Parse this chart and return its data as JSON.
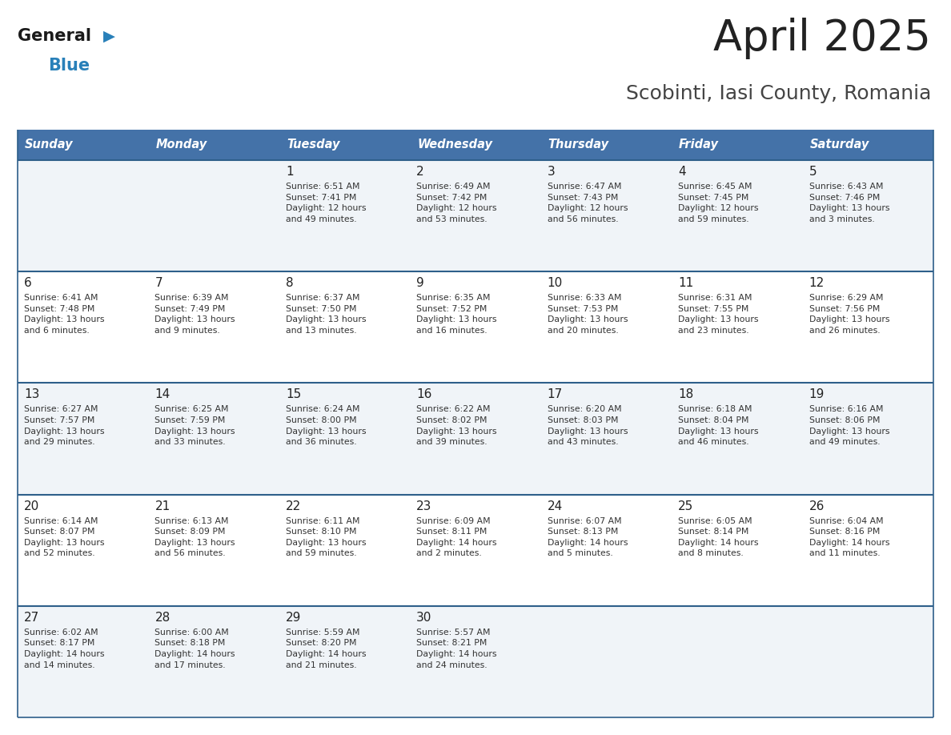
{
  "title": "April 2025",
  "subtitle": "Scobinti, Iasi County, Romania",
  "header_bg": "#4472a8",
  "header_text": "#ffffff",
  "row_bg_odd": "#f0f4f8",
  "row_bg_even": "#ffffff",
  "day_headers": [
    "Sunday",
    "Monday",
    "Tuesday",
    "Wednesday",
    "Thursday",
    "Friday",
    "Saturday"
  ],
  "cell_border_color": "#2e5f8a",
  "title_color": "#222222",
  "subtitle_color": "#444444",
  "day_number_color": "#222222",
  "cell_text_color": "#333333",
  "logo_general_color": "#1a1a1a",
  "logo_blue_color": "#2980b9",
  "logo_triangle_color": "#2980b9",
  "calendar": [
    [
      {
        "day": "",
        "sunrise": "",
        "sunset": "",
        "daylight": ""
      },
      {
        "day": "",
        "sunrise": "",
        "sunset": "",
        "daylight": ""
      },
      {
        "day": "1",
        "sunrise": "Sunrise: 6:51 AM",
        "sunset": "Sunset: 7:41 PM",
        "daylight": "Daylight: 12 hours\nand 49 minutes."
      },
      {
        "day": "2",
        "sunrise": "Sunrise: 6:49 AM",
        "sunset": "Sunset: 7:42 PM",
        "daylight": "Daylight: 12 hours\nand 53 minutes."
      },
      {
        "day": "3",
        "sunrise": "Sunrise: 6:47 AM",
        "sunset": "Sunset: 7:43 PM",
        "daylight": "Daylight: 12 hours\nand 56 minutes."
      },
      {
        "day": "4",
        "sunrise": "Sunrise: 6:45 AM",
        "sunset": "Sunset: 7:45 PM",
        "daylight": "Daylight: 12 hours\nand 59 minutes."
      },
      {
        "day": "5",
        "sunrise": "Sunrise: 6:43 AM",
        "sunset": "Sunset: 7:46 PM",
        "daylight": "Daylight: 13 hours\nand 3 minutes."
      }
    ],
    [
      {
        "day": "6",
        "sunrise": "Sunrise: 6:41 AM",
        "sunset": "Sunset: 7:48 PM",
        "daylight": "Daylight: 13 hours\nand 6 minutes."
      },
      {
        "day": "7",
        "sunrise": "Sunrise: 6:39 AM",
        "sunset": "Sunset: 7:49 PM",
        "daylight": "Daylight: 13 hours\nand 9 minutes."
      },
      {
        "day": "8",
        "sunrise": "Sunrise: 6:37 AM",
        "sunset": "Sunset: 7:50 PM",
        "daylight": "Daylight: 13 hours\nand 13 minutes."
      },
      {
        "day": "9",
        "sunrise": "Sunrise: 6:35 AM",
        "sunset": "Sunset: 7:52 PM",
        "daylight": "Daylight: 13 hours\nand 16 minutes."
      },
      {
        "day": "10",
        "sunrise": "Sunrise: 6:33 AM",
        "sunset": "Sunset: 7:53 PM",
        "daylight": "Daylight: 13 hours\nand 20 minutes."
      },
      {
        "day": "11",
        "sunrise": "Sunrise: 6:31 AM",
        "sunset": "Sunset: 7:55 PM",
        "daylight": "Daylight: 13 hours\nand 23 minutes."
      },
      {
        "day": "12",
        "sunrise": "Sunrise: 6:29 AM",
        "sunset": "Sunset: 7:56 PM",
        "daylight": "Daylight: 13 hours\nand 26 minutes."
      }
    ],
    [
      {
        "day": "13",
        "sunrise": "Sunrise: 6:27 AM",
        "sunset": "Sunset: 7:57 PM",
        "daylight": "Daylight: 13 hours\nand 29 minutes."
      },
      {
        "day": "14",
        "sunrise": "Sunrise: 6:25 AM",
        "sunset": "Sunset: 7:59 PM",
        "daylight": "Daylight: 13 hours\nand 33 minutes."
      },
      {
        "day": "15",
        "sunrise": "Sunrise: 6:24 AM",
        "sunset": "Sunset: 8:00 PM",
        "daylight": "Daylight: 13 hours\nand 36 minutes."
      },
      {
        "day": "16",
        "sunrise": "Sunrise: 6:22 AM",
        "sunset": "Sunset: 8:02 PM",
        "daylight": "Daylight: 13 hours\nand 39 minutes."
      },
      {
        "day": "17",
        "sunrise": "Sunrise: 6:20 AM",
        "sunset": "Sunset: 8:03 PM",
        "daylight": "Daylight: 13 hours\nand 43 minutes."
      },
      {
        "day": "18",
        "sunrise": "Sunrise: 6:18 AM",
        "sunset": "Sunset: 8:04 PM",
        "daylight": "Daylight: 13 hours\nand 46 minutes."
      },
      {
        "day": "19",
        "sunrise": "Sunrise: 6:16 AM",
        "sunset": "Sunset: 8:06 PM",
        "daylight": "Daylight: 13 hours\nand 49 minutes."
      }
    ],
    [
      {
        "day": "20",
        "sunrise": "Sunrise: 6:14 AM",
        "sunset": "Sunset: 8:07 PM",
        "daylight": "Daylight: 13 hours\nand 52 minutes."
      },
      {
        "day": "21",
        "sunrise": "Sunrise: 6:13 AM",
        "sunset": "Sunset: 8:09 PM",
        "daylight": "Daylight: 13 hours\nand 56 minutes."
      },
      {
        "day": "22",
        "sunrise": "Sunrise: 6:11 AM",
        "sunset": "Sunset: 8:10 PM",
        "daylight": "Daylight: 13 hours\nand 59 minutes."
      },
      {
        "day": "23",
        "sunrise": "Sunrise: 6:09 AM",
        "sunset": "Sunset: 8:11 PM",
        "daylight": "Daylight: 14 hours\nand 2 minutes."
      },
      {
        "day": "24",
        "sunrise": "Sunrise: 6:07 AM",
        "sunset": "Sunset: 8:13 PM",
        "daylight": "Daylight: 14 hours\nand 5 minutes."
      },
      {
        "day": "25",
        "sunrise": "Sunrise: 6:05 AM",
        "sunset": "Sunset: 8:14 PM",
        "daylight": "Daylight: 14 hours\nand 8 minutes."
      },
      {
        "day": "26",
        "sunrise": "Sunrise: 6:04 AM",
        "sunset": "Sunset: 8:16 PM",
        "daylight": "Daylight: 14 hours\nand 11 minutes."
      }
    ],
    [
      {
        "day": "27",
        "sunrise": "Sunrise: 6:02 AM",
        "sunset": "Sunset: 8:17 PM",
        "daylight": "Daylight: 14 hours\nand 14 minutes."
      },
      {
        "day": "28",
        "sunrise": "Sunrise: 6:00 AM",
        "sunset": "Sunset: 8:18 PM",
        "daylight": "Daylight: 14 hours\nand 17 minutes."
      },
      {
        "day": "29",
        "sunrise": "Sunrise: 5:59 AM",
        "sunset": "Sunset: 8:20 PM",
        "daylight": "Daylight: 14 hours\nand 21 minutes."
      },
      {
        "day": "30",
        "sunrise": "Sunrise: 5:57 AM",
        "sunset": "Sunset: 8:21 PM",
        "daylight": "Daylight: 14 hours\nand 24 minutes."
      },
      {
        "day": "",
        "sunrise": "",
        "sunset": "",
        "daylight": ""
      },
      {
        "day": "",
        "sunrise": "",
        "sunset": "",
        "daylight": ""
      },
      {
        "day": "",
        "sunrise": "",
        "sunset": "",
        "daylight": ""
      }
    ]
  ]
}
